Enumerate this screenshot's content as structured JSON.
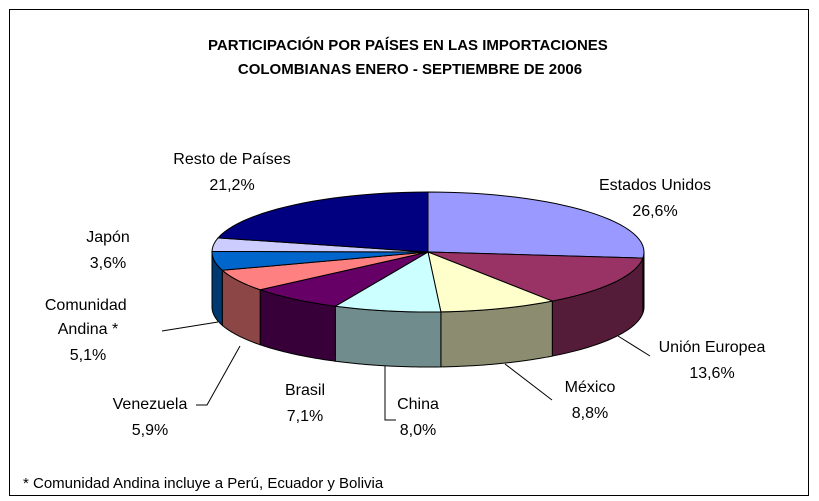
{
  "chart_data": {
    "type": "pie3d",
    "title": "PARTICIPACIÓN POR PAÍSES EN LAS IMPORTACIONES COLOMBIANAS ENERO - SEPTIEMBRE DE 2006",
    "categories": [
      "Estados Unidos",
      "Unión Europea",
      "México",
      "China",
      "Brasil",
      "Venezuela",
      "Comunidad Andina *",
      "Japón",
      "Resto de Países"
    ],
    "values": [
      26.6,
      13.6,
      8.8,
      8.0,
      7.1,
      5.9,
      5.1,
      3.6,
      21.2
    ],
    "value_labels": [
      "26,6%",
      "13,6%",
      "8,8%",
      "8,0%",
      "7,1%",
      "5,9%",
      "5,1%",
      "3,6%",
      "21,2%"
    ],
    "colors": [
      "#9999ff",
      "#993366",
      "#ffffcc",
      "#ccffff",
      "#660066",
      "#ff8080",
      "#0066cc",
      "#ccccff",
      "#000080"
    ],
    "footnote": "* Comunidad Andina incluye a Perú, Ecuador y Bolivia"
  }
}
